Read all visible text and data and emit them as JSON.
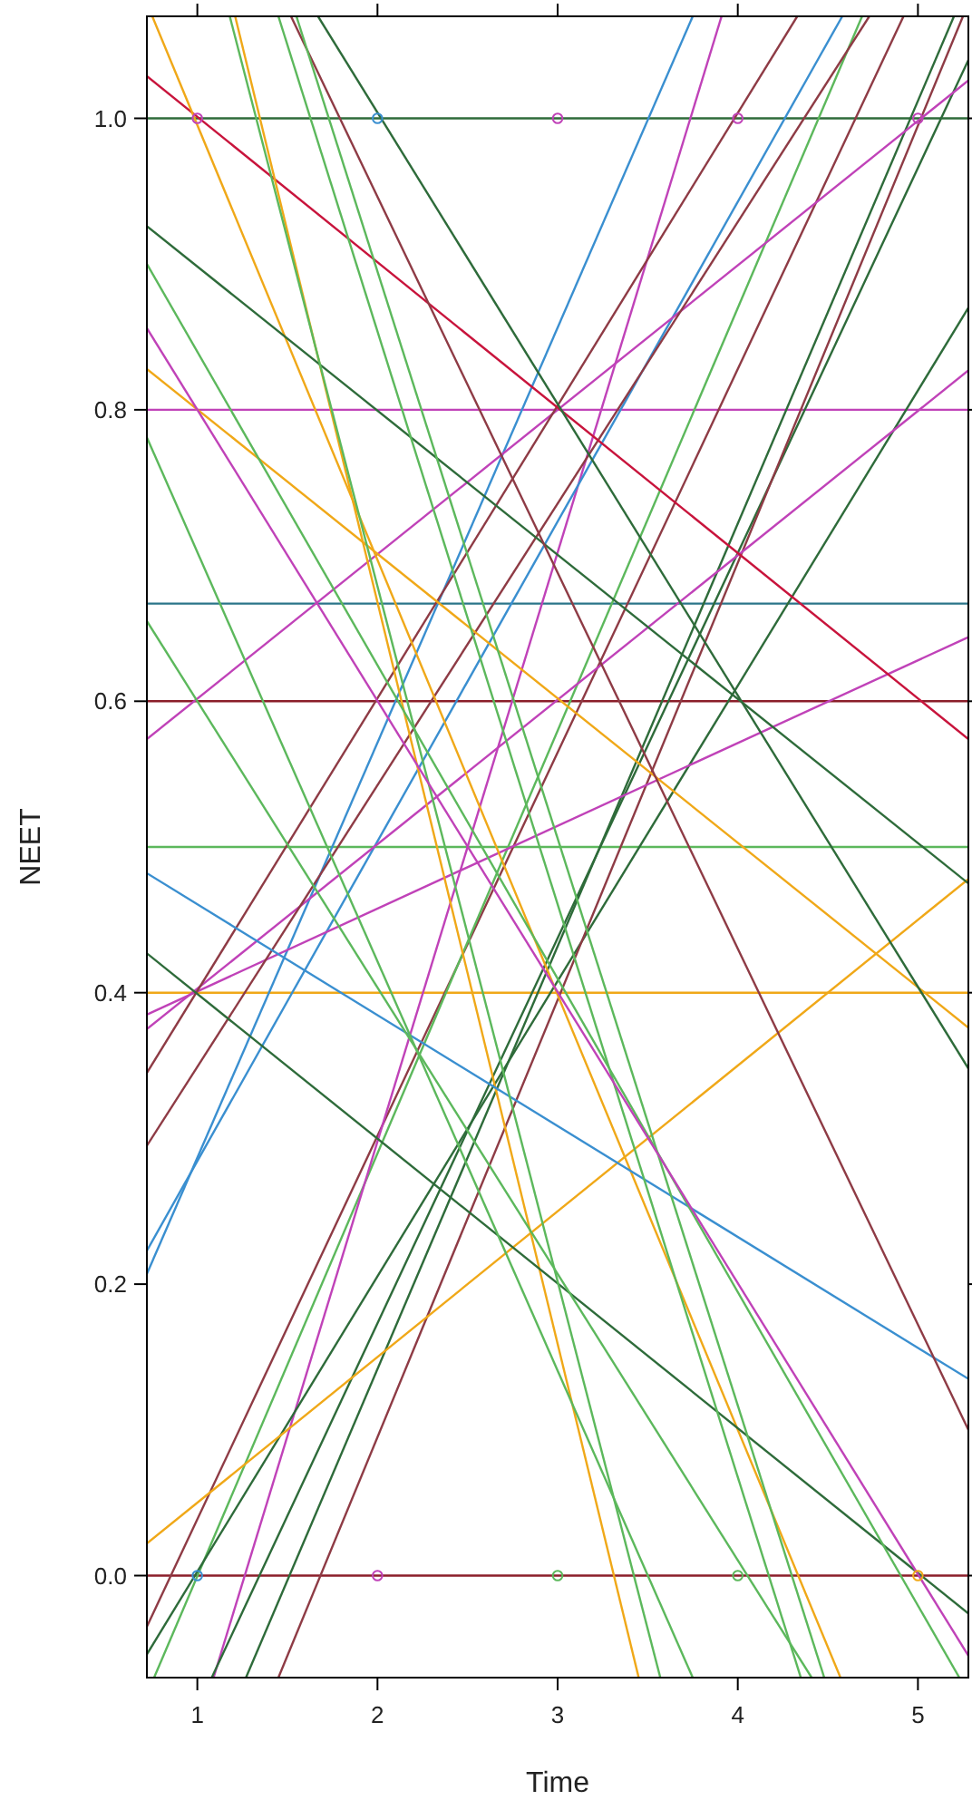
{
  "chart_data": {
    "type": "line",
    "xlabel": "Time",
    "ylabel": "NEET",
    "xlim": [
      0.72,
      5.28
    ],
    "ylim": [
      -0.07,
      1.07
    ],
    "xticks": [
      1,
      2,
      3,
      4,
      5
    ],
    "yticks": [
      {
        "value": 0,
        "label": "0.0"
      },
      {
        "value": 0.2,
        "label": "0.2"
      },
      {
        "value": 0.4,
        "label": "0.4"
      },
      {
        "value": 0.6,
        "label": "0.6"
      },
      {
        "value": 0.8,
        "label": "0.8"
      },
      {
        "value": 1,
        "label": "1.0"
      }
    ],
    "grid": false,
    "line_style": "solid",
    "series": [
      {
        "color": "#2e6b3a",
        "x": [
          0.72,
          5.28
        ],
        "values": [
          1.0,
          1.0
        ]
      },
      {
        "color": "#c042b8",
        "x": [
          0.72,
          5.28
        ],
        "values": [
          0.8,
          0.8
        ]
      },
      {
        "color": "#2a7489",
        "x": [
          0.72,
          5.28
        ],
        "values": [
          0.667,
          0.667
        ]
      },
      {
        "color": "#8b1e2a",
        "x": [
          0.72,
          5.28
        ],
        "values": [
          0.6,
          0.6
        ]
      },
      {
        "color": "#5cb85c",
        "x": [
          0.72,
          5.28
        ],
        "values": [
          0.5,
          0.5
        ]
      },
      {
        "color": "#f0a818",
        "x": [
          0.72,
          5.28
        ],
        "values": [
          0.4,
          0.4
        ]
      },
      {
        "color": "#8b1e2a",
        "x": [
          0.72,
          5.28
        ],
        "values": [
          0.0,
          0.0
        ]
      },
      {
        "color": "#8e3b45",
        "x": [
          0.72,
          4.92
        ],
        "values": [
          -0.035,
          1.07
        ]
      },
      {
        "color": "#5cb85c",
        "x": [
          0.76,
          4.69
        ],
        "values": [
          -0.07,
          1.07
        ]
      },
      {
        "color": "#c042b8",
        "x": [
          1.09,
          3.91
        ],
        "values": [
          -0.07,
          1.07
        ]
      },
      {
        "color": "#2e6b3a",
        "x": [
          0.72,
          5.28
        ],
        "values": [
          -0.054,
          0.87
        ]
      },
      {
        "color": "#2e6b3a",
        "x": [
          1.08,
          5.28
        ],
        "values": [
          -0.07,
          1.04
        ]
      },
      {
        "color": "#2e6b3a",
        "x": [
          1.27,
          5.2
        ],
        "values": [
          -0.07,
          1.07
        ]
      },
      {
        "color": "#8e3b45",
        "x": [
          1.45,
          5.25
        ],
        "values": [
          -0.07,
          1.07
        ]
      },
      {
        "color": "#f0a818",
        "x": [
          0.72,
          5.28
        ],
        "values": [
          0.022,
          0.478
        ]
      },
      {
        "color": "#3a8fd0",
        "x": [
          0.72,
          3.75
        ],
        "values": [
          0.207,
          1.07
        ]
      },
      {
        "color": "#3a8fd0",
        "x": [
          0.72,
          4.58
        ],
        "values": [
          0.223,
          1.07
        ]
      },
      {
        "color": "#c042b8",
        "x": [
          0.72,
          5.28
        ],
        "values": [
          0.574,
          1.026
        ]
      },
      {
        "color": "#c042b8",
        "x": [
          0.72,
          5.28
        ],
        "values": [
          0.385,
          0.644
        ]
      },
      {
        "color": "#c042b8",
        "x": [
          0.72,
          5.28
        ],
        "values": [
          0.375,
          0.827
        ]
      },
      {
        "color": "#8e3b45",
        "x": [
          0.72,
          4.33
        ],
        "values": [
          0.345,
          1.07
        ]
      },
      {
        "color": "#8e3b45",
        "x": [
          0.72,
          4.73
        ],
        "values": [
          0.295,
          1.07
        ]
      },
      {
        "color": "#c8143c",
        "x": [
          0.72,
          5.28
        ],
        "values": [
          1.029,
          0.574
        ]
      },
      {
        "color": "#f0a818",
        "x": [
          0.75,
          4.57
        ],
        "values": [
          1.07,
          -0.07
        ]
      },
      {
        "color": "#f0a818",
        "x": [
          1.21,
          3.45
        ],
        "values": [
          1.07,
          -0.07
        ]
      },
      {
        "color": "#f0a818",
        "x": [
          0.72,
          5.28
        ],
        "values": [
          0.828,
          0.376
        ]
      },
      {
        "color": "#2e6b3a",
        "x": [
          0.72,
          5.28
        ],
        "values": [
          0.427,
          -0.026
        ]
      },
      {
        "color": "#3a8fd0",
        "x": [
          0.72,
          5.28
        ],
        "values": [
          0.482,
          0.135
        ]
      },
      {
        "color": "#2e6b3a",
        "x": [
          0.72,
          5.28
        ],
        "values": [
          0.926,
          0.475
        ]
      },
      {
        "color": "#2e6b3a",
        "x": [
          1.67,
          5.28
        ],
        "values": [
          1.07,
          0.348
        ]
      },
      {
        "color": "#8e3b45",
        "x": [
          1.52,
          5.28
        ],
        "values": [
          1.07,
          0.1
        ]
      },
      {
        "color": "#5cb85c",
        "x": [
          1.18,
          3.57
        ],
        "values": [
          1.07,
          -0.07
        ]
      },
      {
        "color": "#5cb85c",
        "x": [
          1.45,
          4.35
        ],
        "values": [
          1.07,
          -0.07
        ]
      },
      {
        "color": "#5cb85c",
        "x": [
          1.55,
          4.48
        ],
        "values": [
          1.07,
          -0.07
        ]
      },
      {
        "color": "#5cb85c",
        "x": [
          0.72,
          5.23
        ],
        "values": [
          0.9,
          -0.07
        ]
      },
      {
        "color": "#5cb85c",
        "x": [
          0.72,
          3.75
        ],
        "values": [
          0.781,
          -0.07
        ]
      },
      {
        "color": "#5cb85c",
        "x": [
          0.72,
          4.41
        ],
        "values": [
          0.655,
          -0.07
        ]
      },
      {
        "color": "#c042b8",
        "x": [
          0.72,
          5.28
        ],
        "values": [
          0.856,
          -0.055
        ]
      },
      {
        "type": "scatter",
        "marker": "circle",
        "x": [
          1,
          2,
          3,
          4,
          5,
          1,
          2,
          3,
          4,
          5
        ],
        "values": [
          1,
          1,
          1,
          1,
          1,
          0,
          0,
          0,
          0,
          0
        ],
        "colors": [
          "#c042b8",
          "#3a8fd0",
          "#c042b8",
          "#c042b8",
          "#c042b8",
          "#3a8fd0",
          "#c042b8",
          "#5cb85c",
          "#5cb85c",
          "#f0a818"
        ]
      }
    ]
  }
}
